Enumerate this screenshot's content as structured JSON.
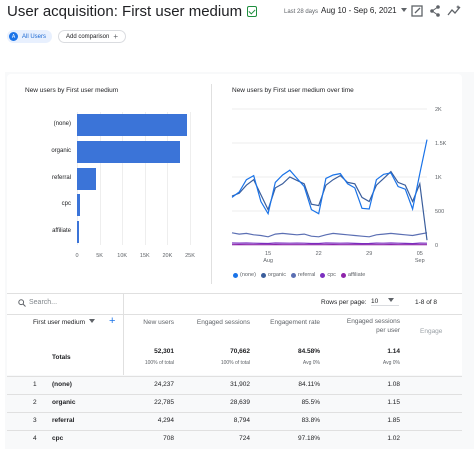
{
  "header": {
    "title": "User acquisition: First user medium",
    "date_label": "Last 28 days",
    "date_range": "Aug 10 - Sep 6, 2021"
  },
  "toolbar": {
    "icons": [
      "edit-report-icon",
      "share-icon",
      "insights-icon"
    ]
  },
  "comparison": {
    "segment_avatar": "A",
    "segment_label": "All Users",
    "add_label": "Add comparison",
    "add_icon": "+"
  },
  "bar_card": {
    "title": "New users by First user medium",
    "chart_data": {
      "type": "bar",
      "orientation": "horizontal",
      "categories": [
        "(none)",
        "organic",
        "referral",
        "cpc",
        "affiliate"
      ],
      "values": [
        24237,
        22785,
        4294,
        708,
        150
      ],
      "x_ticks": [
        "0",
        "5K",
        "10K",
        "15K",
        "20K",
        "25K"
      ],
      "xlim": [
        0,
        25000
      ],
      "grid": true,
      "color": "#3b74d8"
    }
  },
  "line_card": {
    "title": "New users by First user medium over time",
    "chart_data": {
      "type": "line",
      "x": [
        "Aug 10",
        "Aug 11",
        "Aug 12",
        "Aug 13",
        "Aug 14",
        "Aug 15",
        "Aug 16",
        "Aug 17",
        "Aug 18",
        "Aug 19",
        "Aug 20",
        "Aug 21",
        "Aug 22",
        "Aug 23",
        "Aug 24",
        "Aug 25",
        "Aug 26",
        "Aug 27",
        "Aug 28",
        "Aug 29",
        "Aug 30",
        "Aug 31",
        "Sep 1",
        "Sep 2",
        "Sep 3",
        "Sep 4",
        "Sep 5",
        "Sep 6"
      ],
      "x_ticks": [
        {
          "day": "15",
          "month": "Aug"
        },
        {
          "day": "22",
          "month": ""
        },
        {
          "day": "29",
          "month": ""
        },
        {
          "day": "05",
          "month": "Sep"
        }
      ],
      "y_ticks": [
        "0",
        "500",
        "1K",
        "1.5K",
        "2K"
      ],
      "ylim": [
        0,
        2000
      ],
      "legend_position": "bottom",
      "series": [
        {
          "name": "(none)",
          "color": "#1a73e8",
          "values": [
            700,
            780,
            960,
            1020,
            640,
            460,
            920,
            1030,
            1100,
            980,
            860,
            520,
            460,
            980,
            1030,
            1050,
            900,
            840,
            540,
            530,
            960,
            1040,
            1060,
            860,
            820,
            530,
            1050,
            1550
          ]
        },
        {
          "name": "organic",
          "color": "#3b5e9c",
          "values": [
            720,
            760,
            880,
            960,
            740,
            520,
            840,
            900,
            1000,
            950,
            900,
            600,
            580,
            880,
            960,
            1020,
            920,
            900,
            700,
            640,
            880,
            980,
            1080,
            920,
            880,
            640,
            900,
            70
          ]
        },
        {
          "name": "referral",
          "color": "#5b6fb3",
          "values": [
            180,
            160,
            170,
            150,
            140,
            120,
            160,
            170,
            160,
            150,
            160,
            130,
            120,
            150,
            170,
            160,
            150,
            140,
            130,
            120,
            150,
            160,
            170,
            160,
            150,
            140,
            160,
            180
          ]
        },
        {
          "name": "cpc",
          "color": "#7b2fbf",
          "values": [
            30,
            28,
            30,
            26,
            24,
            22,
            30,
            28,
            26,
            28,
            26,
            22,
            22,
            30,
            28,
            26,
            28,
            24,
            20,
            22,
            28,
            26,
            30,
            26,
            24,
            20,
            28,
            26
          ]
        },
        {
          "name": "affiliate",
          "color": "#8e24aa",
          "values": [
            5,
            6,
            5,
            4,
            5,
            4,
            6,
            5,
            5,
            4,
            5,
            4,
            4,
            5,
            6,
            5,
            5,
            4,
            4,
            4,
            5,
            5,
            6,
            5,
            4,
            4,
            5,
            5
          ]
        }
      ]
    }
  },
  "table": {
    "search_placeholder": "Search...",
    "rows_per_page_label": "Rows per page:",
    "rows_per_page_value": "10",
    "page_info": "1-8 of 8",
    "dimension_header": "First user medium",
    "columns": [
      "New users",
      "Engaged sessions",
      "Engagement rate",
      "Engaged sessions per user",
      "Engage"
    ],
    "engaged_per_user_line1": "Engaged sessions",
    "engaged_per_user_line2": "per user",
    "totals": {
      "label": "Totals",
      "new_users": "52,301",
      "new_users_sub": "100% of total",
      "engaged_sessions": "70,662",
      "engaged_sessions_sub": "100% of total",
      "engagement_rate": "84.58%",
      "engagement_rate_sub": "Avg 0%",
      "per_user": "1.14",
      "per_user_sub": "Avg 0%"
    },
    "rows": [
      {
        "idx": "1",
        "medium": "(none)",
        "new_users": "24,237",
        "engaged_sessions": "31,902",
        "engagement_rate": "84.11%",
        "per_user": "1.08"
      },
      {
        "idx": "2",
        "medium": "organic",
        "new_users": "22,785",
        "engaged_sessions": "28,639",
        "engagement_rate": "85.5%",
        "per_user": "1.15"
      },
      {
        "idx": "3",
        "medium": "referral",
        "new_users": "4,294",
        "engaged_sessions": "8,794",
        "engagement_rate": "83.8%",
        "per_user": "1.85"
      },
      {
        "idx": "4",
        "medium": "cpc",
        "new_users": "708",
        "engaged_sessions": "724",
        "engagement_rate": "97.18%",
        "per_user": "1.02"
      }
    ]
  }
}
